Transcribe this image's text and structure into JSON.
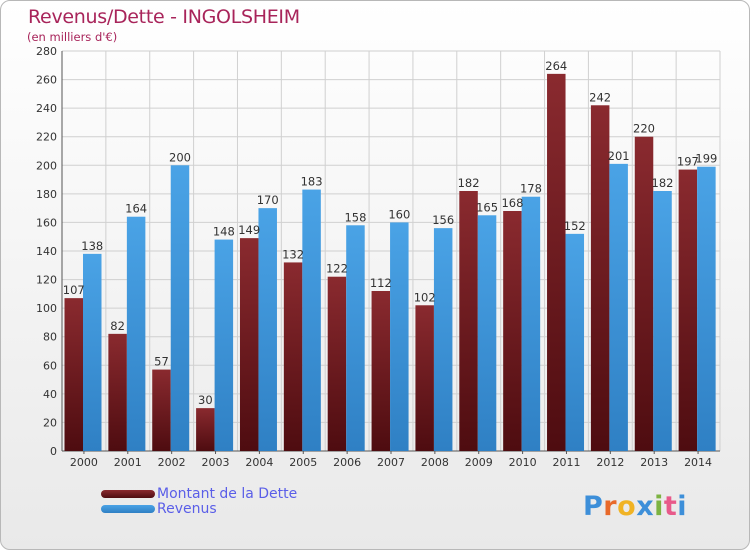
{
  "title": "Revenus/Dette - INGOLSHEIM",
  "subtitle": "(en milliers d'€)",
  "colors": {
    "dette": "#7a1f24",
    "revenus": "#3f97d8",
    "title": "#a8245a",
    "legend_text": "#5a5ee8"
  },
  "legend": {
    "dette": "Montant de la Dette",
    "revenus": "Revenus"
  },
  "logo": {
    "text": "Proxiti",
    "letters": [
      "P",
      "r",
      "o",
      "x",
      "i",
      "t",
      "i"
    ],
    "colors": [
      "#3d8fd9",
      "#e8692a",
      "#f0b325",
      "#3d8fd9",
      "#7cb342",
      "#e85a8a",
      "#3d8fd9"
    ]
  },
  "chart_data": {
    "type": "bar",
    "title": "Revenus/Dette - INGOLSHEIM",
    "subtitle": "(en milliers d'€)",
    "categories": [
      "2000",
      "2001",
      "2002",
      "2003",
      "2004",
      "2005",
      "2006",
      "2007",
      "2008",
      "2009",
      "2010",
      "2011",
      "2012",
      "2013",
      "2014"
    ],
    "series": [
      {
        "name": "Montant de la Dette",
        "values": [
          107,
          82,
          57,
          30,
          149,
          132,
          122,
          112,
          102,
          182,
          168,
          264,
          242,
          220,
          197
        ]
      },
      {
        "name": "Revenus",
        "values": [
          138,
          164,
          200,
          148,
          170,
          183,
          158,
          160,
          156,
          165,
          178,
          152,
          201,
          182,
          199
        ]
      }
    ],
    "yticks": [
      0,
      20,
      40,
      60,
      80,
      100,
      120,
      140,
      160,
      180,
      200,
      220,
      240,
      260,
      280
    ],
    "ylim": [
      0,
      280
    ],
    "grid": true,
    "legend_position": "bottom-left"
  }
}
